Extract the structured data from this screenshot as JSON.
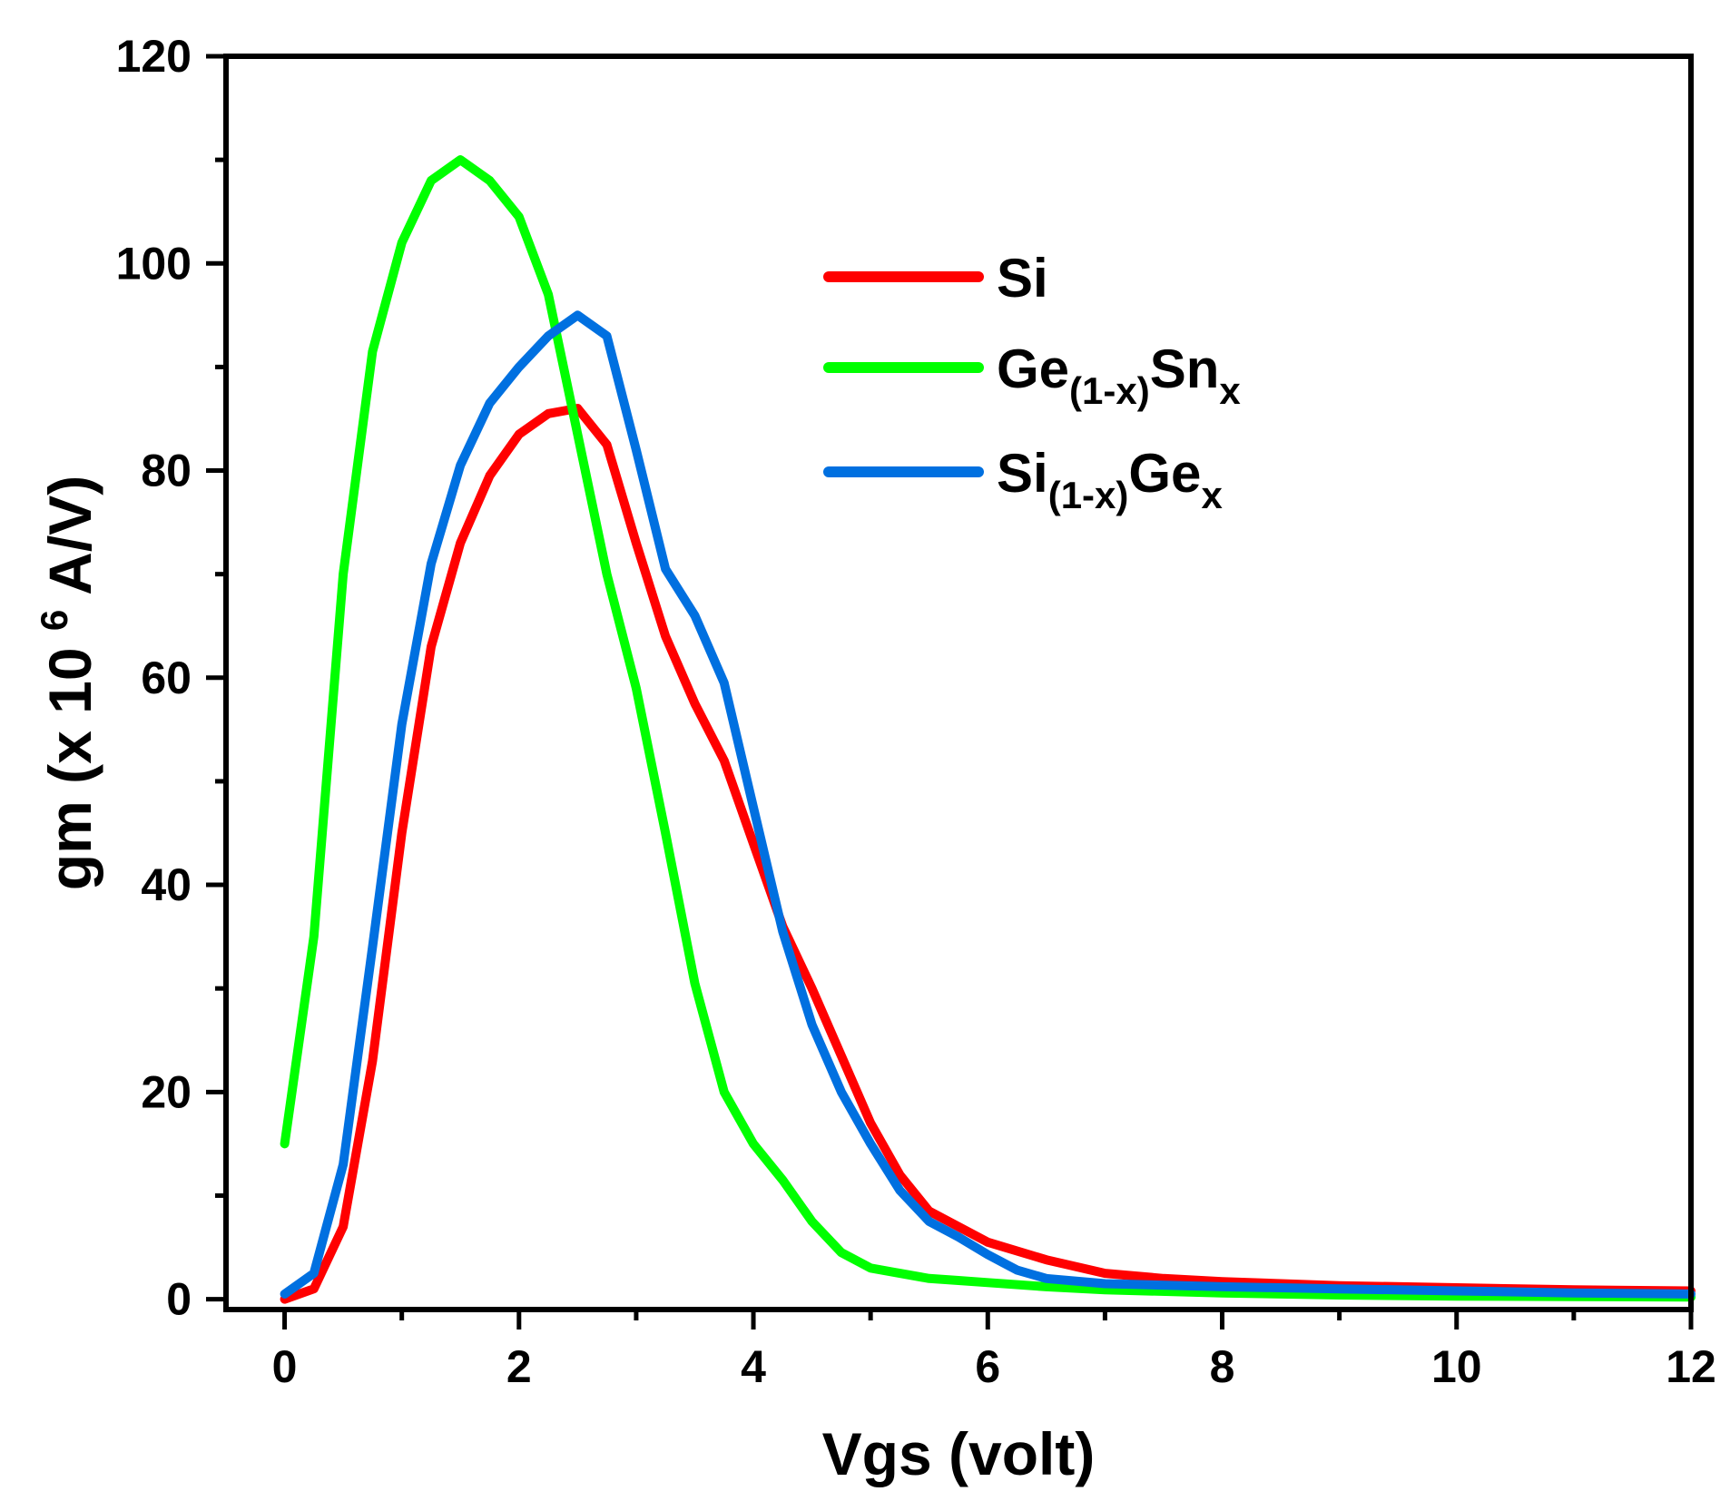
{
  "chart_data": {
    "type": "line",
    "title": "",
    "xlabel": "Vgs (volt)",
    "ylabel": {
      "prefix": "gm (x 10",
      "sup": "6",
      "suffix": " A/V)"
    },
    "xlim": [
      -0.5,
      12
    ],
    "ylim": [
      -1,
      120
    ],
    "xticks": [
      0,
      2,
      4,
      6,
      8,
      10,
      12
    ],
    "xtick_labels": [
      "0",
      "2",
      "4",
      "6",
      "8",
      "10",
      "12"
    ],
    "yticks": [
      0,
      20,
      40,
      60,
      80,
      100,
      120
    ],
    "ytick_labels": [
      "0",
      "20",
      "40",
      "60",
      "80",
      "100",
      "120"
    ],
    "legend_position": "top-right",
    "series": [
      {
        "name": "Si",
        "legend": {
          "main": "Si",
          "parts": []
        },
        "color": "#ff0000",
        "x": [
          0,
          0.25,
          0.5,
          0.75,
          1.0,
          1.25,
          1.5,
          1.75,
          2.0,
          2.25,
          2.5,
          2.75,
          3.0,
          3.25,
          3.5,
          3.75,
          4.0,
          4.25,
          4.5,
          4.75,
          5.0,
          5.25,
          5.5,
          5.75,
          6.0,
          6.5,
          7.0,
          7.5,
          8.0,
          9.0,
          10.0,
          11.0,
          12.0
        ],
        "y": [
          0,
          1,
          7,
          23,
          45,
          63,
          73,
          79.5,
          83.5,
          85.5,
          86,
          82.5,
          73,
          64,
          57.5,
          52,
          44,
          36,
          30,
          23.5,
          17,
          12,
          8.5,
          7,
          5.5,
          3.8,
          2.5,
          2,
          1.7,
          1.3,
          1.1,
          0.9,
          0.8
        ]
      },
      {
        "name": "Ge(1-x)Snx",
        "legend": {
          "main": "Ge",
          "parts": [
            {
              "sub": "(1-x)"
            },
            {
              "text": "Sn"
            },
            {
              "sub": "x"
            }
          ]
        },
        "color": "#00ff00",
        "x": [
          0,
          0.25,
          0.5,
          0.75,
          1.0,
          1.25,
          1.5,
          1.75,
          2.0,
          2.25,
          2.5,
          2.75,
          3.0,
          3.25,
          3.5,
          3.75,
          4.0,
          4.25,
          4.5,
          4.75,
          5.0,
          5.25,
          5.5,
          5.75,
          6.0,
          6.5,
          7.0,
          8.0,
          9.0,
          10.0,
          11.0,
          12.0
        ],
        "y": [
          15,
          35,
          70,
          91.5,
          102,
          108,
          110,
          108,
          104.5,
          97,
          83.5,
          70,
          59,
          45,
          30.5,
          20,
          15,
          11.5,
          7.5,
          4.5,
          3,
          2.5,
          2,
          1.8,
          1.6,
          1.2,
          0.9,
          0.6,
          0.4,
          0.3,
          0.25,
          0.2
        ]
      },
      {
        "name": "Si(1-x)Gex",
        "legend": {
          "main": "Si",
          "parts": [
            {
              "sub": "(1-x)"
            },
            {
              "text": "Ge"
            },
            {
              "sub": "x"
            }
          ]
        },
        "color": "#0070e0",
        "x": [
          0,
          0.25,
          0.5,
          0.75,
          1.0,
          1.25,
          1.5,
          1.75,
          2.0,
          2.25,
          2.5,
          2.75,
          3.0,
          3.25,
          3.5,
          3.75,
          4.0,
          4.25,
          4.5,
          4.75,
          5.0,
          5.25,
          5.5,
          5.75,
          6.0,
          6.25,
          6.5,
          7.0,
          8.0,
          9.0,
          10.0,
          11.0,
          12.0
        ],
        "y": [
          0.5,
          2.5,
          13,
          34,
          55.5,
          71,
          80.5,
          86.5,
          90,
          93,
          95,
          93,
          82,
          70.5,
          66,
          59.5,
          47.5,
          35.5,
          26.5,
          20,
          15,
          10.5,
          7.5,
          6,
          4.3,
          2.8,
          2,
          1.5,
          1.2,
          1,
          0.8,
          0.6,
          0.5
        ]
      }
    ]
  }
}
